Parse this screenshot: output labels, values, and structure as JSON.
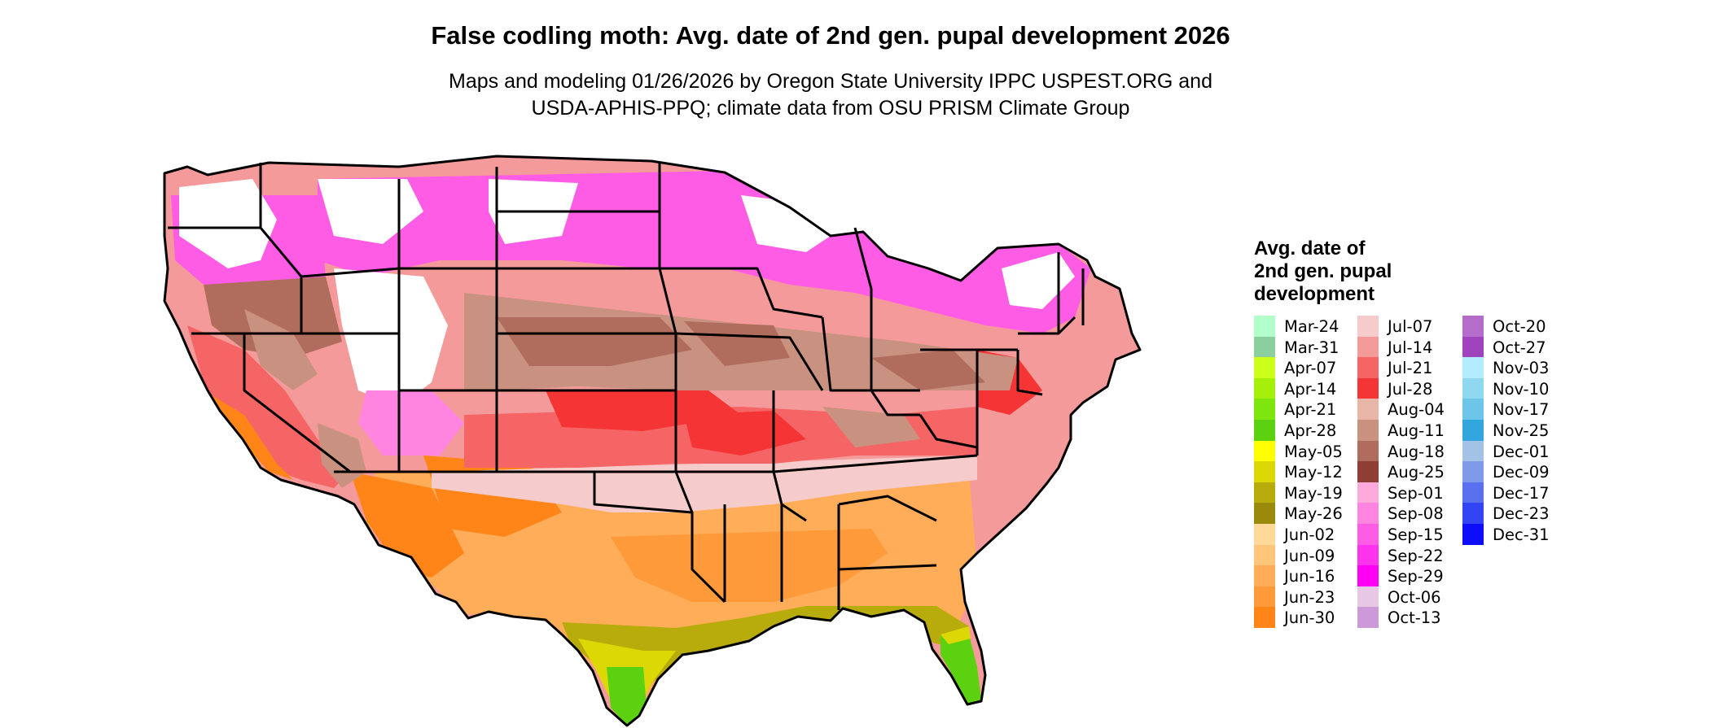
{
  "title": "False codling moth: Avg. date of 2nd gen. pupal development 2026",
  "subtitle": {
    "line1": "Maps and modeling 01/26/2026 by Oregon State University IPPC USPEST.ORG and",
    "line2": "USDA-APHIS-PPQ; climate data from OSU PRISM Climate Group"
  },
  "legend": {
    "title_lines": [
      "Avg. date of",
      "2nd gen. pupal",
      "development"
    ],
    "items": [
      {
        "label": "Mar-24",
        "color": "#b3ffcc"
      },
      {
        "label": "Mar-31",
        "color": "#8ccf9e"
      },
      {
        "label": "Apr-07",
        "color": "#ccff1a"
      },
      {
        "label": "Apr-14",
        "color": "#a6ef0b"
      },
      {
        "label": "Apr-21",
        "color": "#7fe50f"
      },
      {
        "label": "Apr-28",
        "color": "#5cd10f"
      },
      {
        "label": "May-05",
        "color": "#ffff00"
      },
      {
        "label": "May-12",
        "color": "#dcd806"
      },
      {
        "label": "May-19",
        "color": "#b8ab0c"
      },
      {
        "label": "May-26",
        "color": "#9a8a0c"
      },
      {
        "label": "Jun-02",
        "color": "#ffd99a"
      },
      {
        "label": "Jun-09",
        "color": "#ffc57a"
      },
      {
        "label": "Jun-16",
        "color": "#ffad58"
      },
      {
        "label": "Jun-23",
        "color": "#ff9a3a"
      },
      {
        "label": "Jun-30",
        "color": "#ff8518"
      },
      {
        "label": "Jul-07",
        "color": "#f5cbcb"
      },
      {
        "label": "Jul-14",
        "color": "#f59a9a"
      },
      {
        "label": "Jul-21",
        "color": "#f56565"
      },
      {
        "label": "Jul-28",
        "color": "#f53535"
      },
      {
        "label": "Aug-04",
        "color": "#e8b6a7"
      },
      {
        "label": "Aug-11",
        "color": "#c99180"
      },
      {
        "label": "Aug-18",
        "color": "#b06d5d"
      },
      {
        "label": "Aug-25",
        "color": "#8f3e35"
      },
      {
        "label": "Sep-01",
        "color": "#ffaadd"
      },
      {
        "label": "Sep-08",
        "color": "#ff85e0"
      },
      {
        "label": "Sep-15",
        "color": "#ff5ce6"
      },
      {
        "label": "Sep-22",
        "color": "#ff33ee"
      },
      {
        "label": "Sep-29",
        "color": "#ff00f5"
      },
      {
        "label": "Oct-06",
        "color": "#e6c8e6"
      },
      {
        "label": "Oct-13",
        "color": "#cc99d9"
      },
      {
        "label": "Oct-20",
        "color": "#b56dcc"
      },
      {
        "label": "Oct-27",
        "color": "#a044be"
      },
      {
        "label": "Nov-03",
        "color": "#b3ecff"
      },
      {
        "label": "Nov-10",
        "color": "#8fd8f0"
      },
      {
        "label": "Nov-17",
        "color": "#6dc6ea"
      },
      {
        "label": "Nov-25",
        "color": "#33a6dd"
      },
      {
        "label": "Dec-01",
        "color": "#a3c2e6"
      },
      {
        "label": "Dec-09",
        "color": "#7f9ae8"
      },
      {
        "label": "Dec-17",
        "color": "#5a70ef"
      },
      {
        "label": "Dec-23",
        "color": "#3344f5"
      },
      {
        "label": "Dec-31",
        "color": "#0d0dfc"
      }
    ]
  }
}
